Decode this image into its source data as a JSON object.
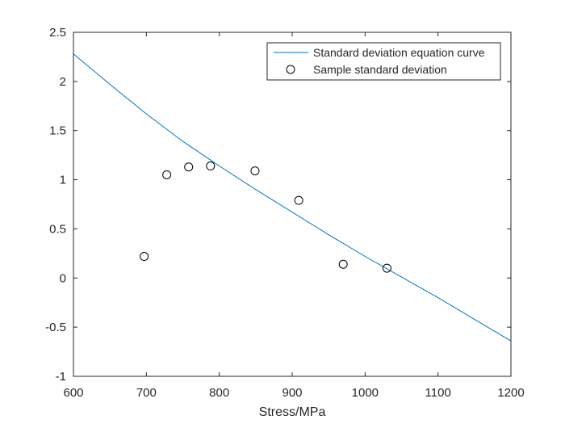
{
  "chart_data": {
    "type": "line",
    "title": "",
    "xlabel": "Stress/MPa",
    "ylabel": "",
    "xlim": [
      600,
      1200
    ],
    "ylim": [
      -1,
      2.5
    ],
    "xticks": [
      600,
      700,
      800,
      900,
      1000,
      1100,
      1200
    ],
    "yticks": [
      -1,
      -0.5,
      0,
      0.5,
      1,
      1.5,
      2,
      2.5
    ],
    "xtick_labels": [
      "600",
      "700",
      "800",
      "900",
      "1000",
      "1100",
      "1200"
    ],
    "ytick_labels": [
      "-1",
      "-0.5",
      "0",
      "0.5",
      "1",
      "1.5",
      "2",
      "2.5"
    ],
    "grid": false,
    "legend_position": "top-right",
    "series": [
      {
        "name": "Standard deviation equation curve",
        "kind": "line",
        "color": "#0072bd",
        "x": [
          600,
          650,
          700,
          750,
          800,
          850,
          900,
          950,
          1000,
          1050,
          1100,
          1150,
          1200
        ],
        "y": [
          2.28,
          1.97,
          1.67,
          1.39,
          1.14,
          0.9,
          0.67,
          0.44,
          0.22,
          0.01,
          -0.2,
          -0.42,
          -0.64
        ]
      },
      {
        "name": "Sample standard deviation",
        "kind": "scatter",
        "marker": "open-circle",
        "color": "#000000",
        "x": [
          697,
          728,
          758,
          788,
          849,
          909,
          970,
          1030
        ],
        "y": [
          0.22,
          1.05,
          1.13,
          1.14,
          1.09,
          0.79,
          0.14,
          0.1
        ]
      }
    ]
  }
}
